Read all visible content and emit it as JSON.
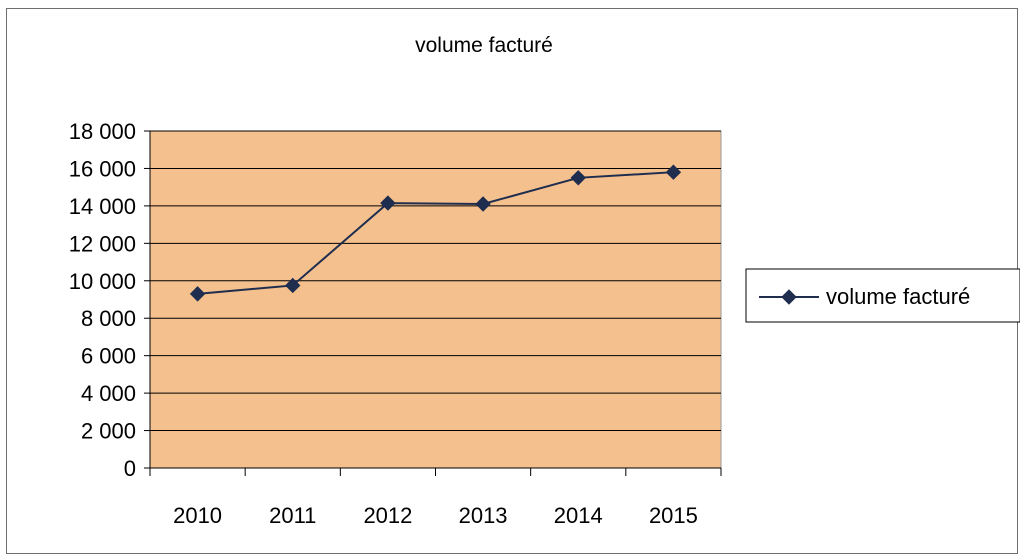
{
  "chart_data": {
    "type": "line",
    "title": "volume facturé",
    "xlabel": "",
    "ylabel": "",
    "categories": [
      "2010",
      "2011",
      "2012",
      "2013",
      "2014",
      "2015"
    ],
    "series": [
      {
        "name": "volume facturé",
        "values": [
          9300,
          9750,
          14150,
          14100,
          15500,
          15800
        ],
        "color": "#1f2d4f",
        "marker": "diamond"
      }
    ],
    "ylim": [
      0,
      18000
    ],
    "yticks": [
      0,
      2000,
      4000,
      6000,
      8000,
      10000,
      12000,
      14000,
      16000,
      18000
    ],
    "ytick_labels": [
      "0",
      "2 000",
      "4 000",
      "6 000",
      "8 000",
      "10 000",
      "12 000",
      "14 000",
      "16 000",
      "18 000"
    ],
    "grid": true,
    "plot_background": "#f4c08e",
    "legend_position": "right"
  }
}
